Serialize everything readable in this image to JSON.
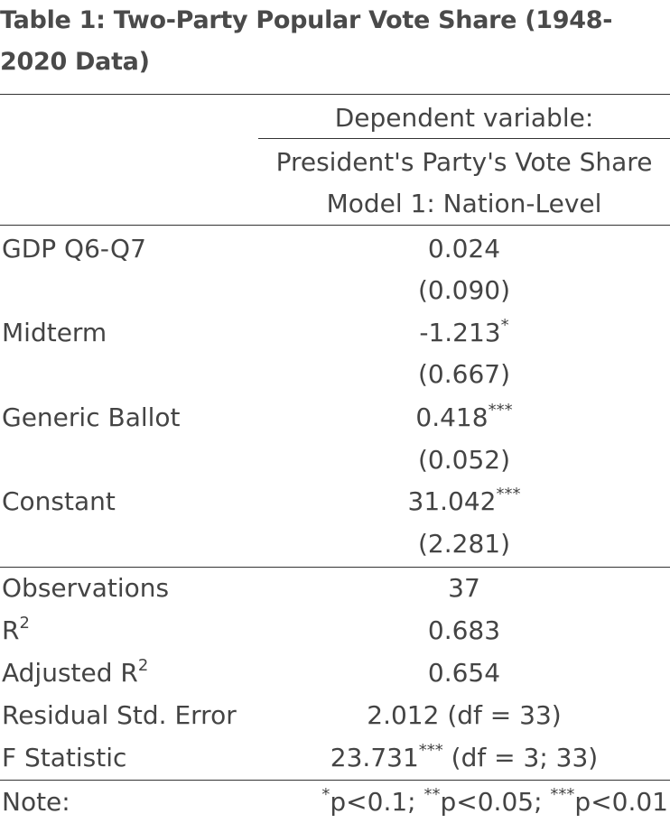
{
  "title": "Table 1: Two-Party Popular Vote Share (1948-2020 Data)",
  "header": {
    "dependent_variable": "Dependent variable:",
    "dependent_name": "President's Party's Vote Share",
    "model_name": "Model 1: Nation-Level"
  },
  "coefficients": [
    {
      "name": "GDP Q6-Q7",
      "estimate": "0.024",
      "stars": "",
      "se": "(0.090)"
    },
    {
      "name": "Midterm",
      "estimate": "-1.213",
      "stars": "*",
      "se": "(0.667)"
    },
    {
      "name": "Generic Ballot",
      "estimate": "0.418",
      "stars": "***",
      "se": "(0.052)"
    },
    {
      "name": "Constant",
      "estimate": "31.042",
      "stars": "***",
      "se": "(2.281)"
    }
  ],
  "stats": {
    "observations": {
      "label": "Observations",
      "value": "37"
    },
    "r2": {
      "label": "R",
      "sup": "2",
      "value": "0.683"
    },
    "adj_r2": {
      "label": "Adjusted R",
      "sup": "2",
      "value": "0.654"
    },
    "rse": {
      "label": "Residual Std. Error",
      "value": "2.012 (df = 33)"
    },
    "fstat": {
      "label": "F Statistic",
      "value": "23.731",
      "stars": "***",
      "suffix": " (df = 3; 33)"
    }
  },
  "note": {
    "label": "Note:",
    "s1": "*",
    "t1": "p<0.1; ",
    "s2": "**",
    "t2": "p<0.05; ",
    "s3": "***",
    "t3": "p<0.01"
  }
}
